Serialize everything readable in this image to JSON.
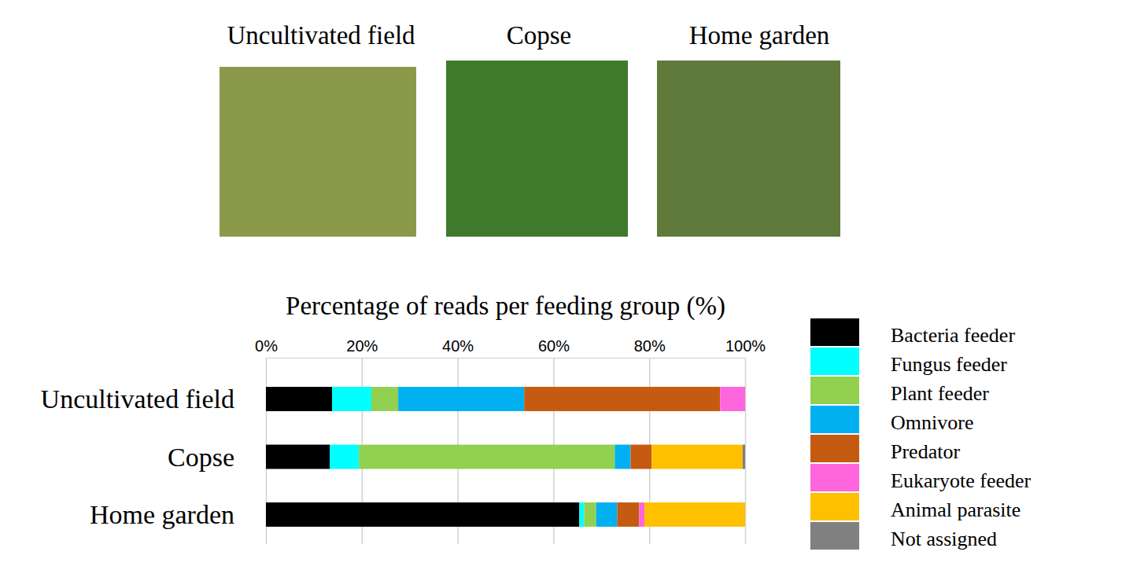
{
  "chart_data": {
    "type": "bar",
    "title": "Percentage of reads per feeding group (%)",
    "annotations": [
      "Uncultivated field",
      "Copse",
      "Home garden"
    ],
    "orientation": "horizontal",
    "stacked": true,
    "grid": true,
    "legend": "right",
    "categories": [
      "Uncultivated field",
      "Copse",
      "Home garden"
    ],
    "xlim": [
      0,
      100
    ],
    "xticks": [
      {
        "value": 0,
        "label": "0%"
      },
      {
        "value": 20,
        "label": "20%"
      },
      {
        "value": 40,
        "label": "40%"
      },
      {
        "value": 60,
        "label": "60%"
      },
      {
        "value": 80,
        "label": "80%"
      },
      {
        "value": 100,
        "label": "100%"
      }
    ],
    "series": [
      {
        "name": "Bacteria feeder",
        "color": "#000000",
        "values": [
          13.8,
          13.3,
          65.4
        ]
      },
      {
        "name": "Fungus feeder",
        "color": "#00ffff",
        "values": [
          8.2,
          6.1,
          1.0
        ]
      },
      {
        "name": "Plant feeder",
        "color": "#92d050",
        "values": [
          5.6,
          53.4,
          2.5
        ]
      },
      {
        "name": "Omnivore",
        "color": "#00b0f0",
        "values": [
          26.3,
          3.3,
          4.4
        ]
      },
      {
        "name": "Predator",
        "color": "#c55a11",
        "values": [
          40.9,
          4.4,
          4.6
        ]
      },
      {
        "name": "Eukaryote feeder",
        "color": "#ff66dd",
        "values": [
          5.2,
          0,
          1.1
        ]
      },
      {
        "name": "Animal parasite",
        "color": "#ffc000",
        "values": [
          0,
          19.0,
          21.0
        ]
      },
      {
        "name": "Not assigned",
        "color": "#808080",
        "values": [
          0,
          0.5,
          0
        ]
      }
    ]
  }
}
